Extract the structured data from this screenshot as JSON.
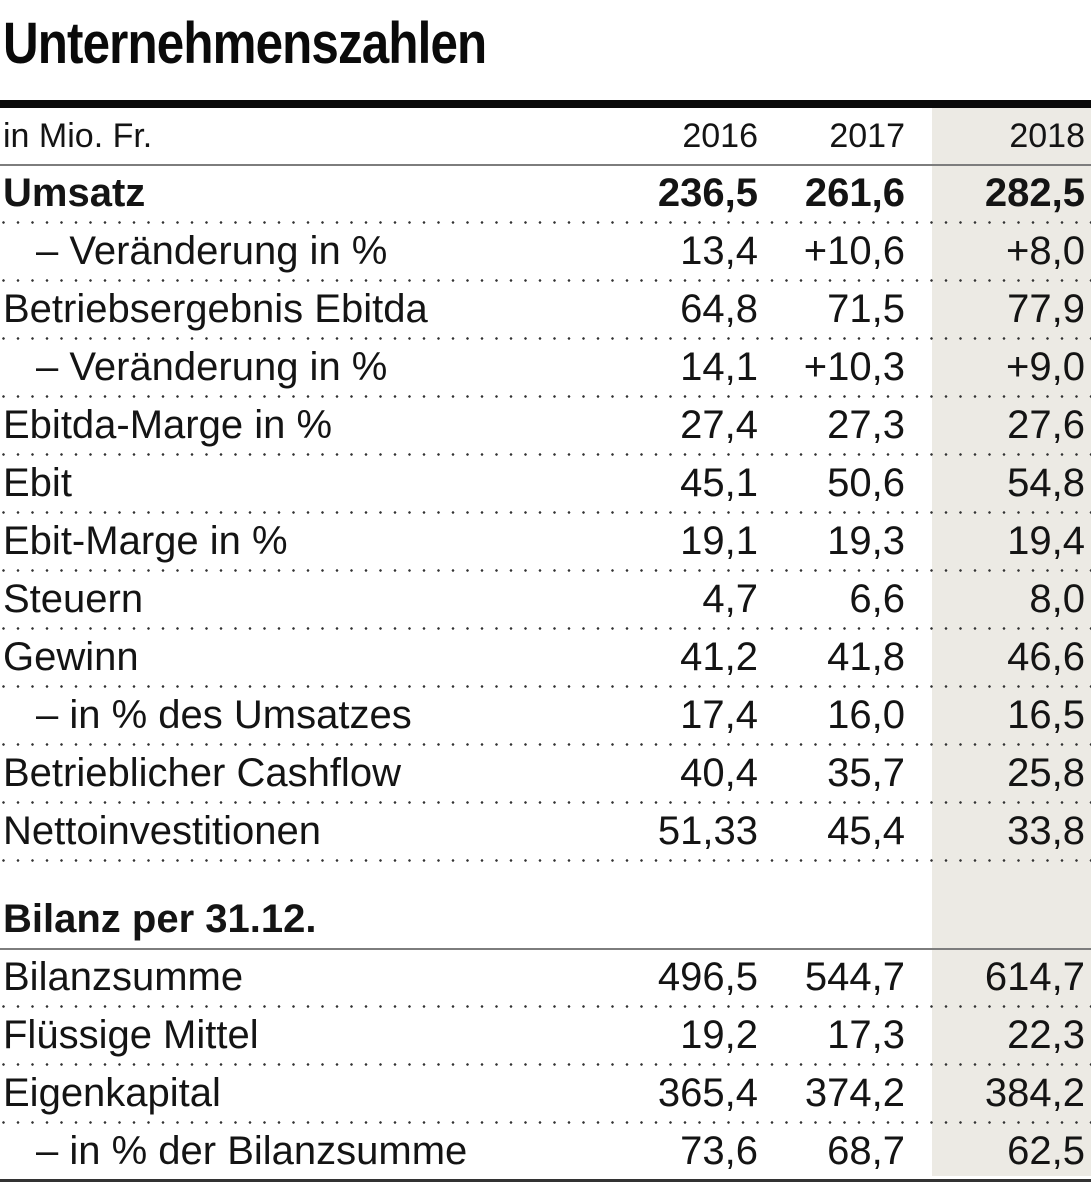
{
  "title": "Unternehmenszahlen",
  "colors": {
    "highlight_column_bg": "#ECEAE4",
    "text": "#141414",
    "top_rule": "#0A0A0A",
    "gray_rule": "#7D7D7D",
    "dotted_rule": "#333333"
  },
  "chart_data": {
    "type": "table",
    "title": "Unternehmenszahlen",
    "unit": "in Mio. Fr.",
    "columns": [
      "2016",
      "2017",
      "2018"
    ],
    "highlight_column": "2018",
    "rows": [
      {
        "type": "data",
        "bold": true,
        "label": "Umsatz",
        "values": [
          "236,5",
          "261,6",
          "282,5"
        ],
        "sep": "dotted"
      },
      {
        "type": "data",
        "indent": true,
        "label": "– Veränderung in %",
        "values": [
          "13,4",
          "+10,6",
          "+8,0"
        ],
        "sep": "dotted"
      },
      {
        "type": "data",
        "label": "Betriebsergebnis Ebitda",
        "values": [
          "64,8",
          "71,5",
          "77,9"
        ],
        "sep": "dotted"
      },
      {
        "type": "data",
        "indent": true,
        "label": "– Veränderung in %",
        "values": [
          "14,1",
          "+10,3",
          "+9,0"
        ],
        "sep": "dotted"
      },
      {
        "type": "data",
        "label": "Ebitda-Marge in %",
        "values": [
          "27,4",
          "27,3",
          "27,6"
        ],
        "sep": "dotted"
      },
      {
        "type": "data",
        "label": "Ebit",
        "values": [
          "45,1",
          "50,6",
          "54,8"
        ],
        "sep": "dotted"
      },
      {
        "type": "data",
        "label": "Ebit-Marge in %",
        "values": [
          "19,1",
          "19,3",
          "19,4"
        ],
        "sep": "dotted"
      },
      {
        "type": "data",
        "label": "Steuern",
        "values": [
          "4,7",
          "6,6",
          "8,0"
        ],
        "sep": "dotted"
      },
      {
        "type": "data",
        "label": "Gewinn",
        "values": [
          "41,2",
          "41,8",
          "46,6"
        ],
        "sep": "dotted"
      },
      {
        "type": "data",
        "indent": true,
        "label": "– in % des Umsatzes",
        "values": [
          "17,4",
          "16,0",
          "16,5"
        ],
        "sep": "dotted"
      },
      {
        "type": "data",
        "label": "Betrieblicher Cashflow",
        "values": [
          "40,4",
          "35,7",
          "25,8"
        ],
        "sep": "dotted"
      },
      {
        "type": "data",
        "label": "Nettoinvestitionen",
        "values": [
          "51,33",
          "45,4",
          "33,8"
        ],
        "sep": "dotted"
      },
      {
        "type": "section",
        "label": "Bilanz per 31.12.",
        "sep": "solid"
      },
      {
        "type": "data",
        "label": "Bilanzsumme",
        "values": [
          "496,5",
          "544,7",
          "614,7"
        ],
        "sep": "dotted"
      },
      {
        "type": "data",
        "label": "Flüssige Mittel",
        "values": [
          "19,2",
          "17,3",
          "22,3"
        ],
        "sep": "dotted"
      },
      {
        "type": "data",
        "label": "Eigenkapital",
        "values": [
          "365,4",
          "374,2",
          "384,2"
        ],
        "sep": "dotted"
      },
      {
        "type": "data",
        "indent": true,
        "label": "– in % der Bilanzsumme",
        "values": [
          "73,6",
          "68,7",
          "62,5"
        ],
        "sep": "bottom"
      }
    ]
  }
}
